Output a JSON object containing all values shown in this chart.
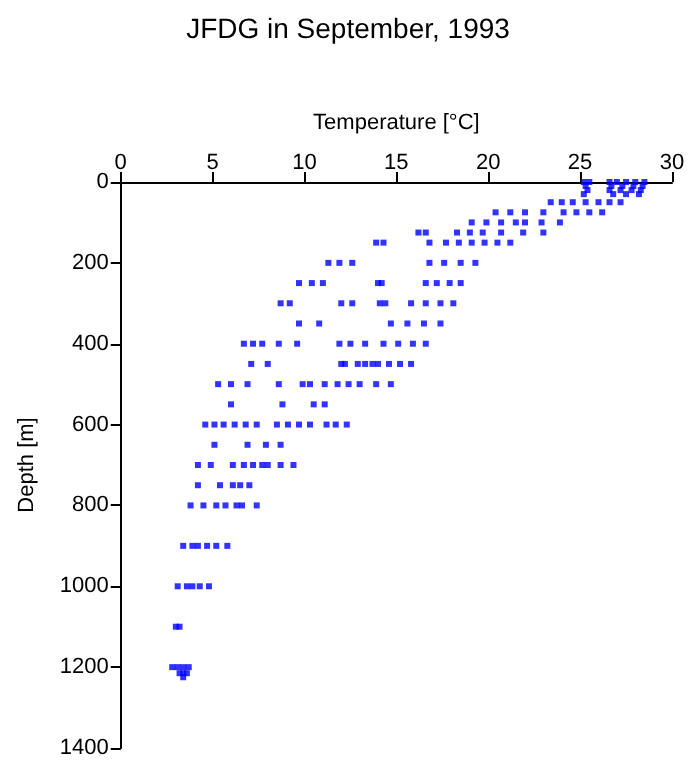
{
  "chart_data": {
    "type": "scatter",
    "title": "JFDG in September, 1993",
    "xlabel": "Temperature [°C]",
    "ylabel": "Depth [m]",
    "xlim": [
      0,
      30
    ],
    "xticks": [
      0,
      5,
      10,
      15,
      20,
      25,
      30
    ],
    "ylim": [
      1400,
      0
    ],
    "yticks": [
      0,
      200,
      400,
      600,
      800,
      1000,
      1200,
      1400
    ],
    "grid": false,
    "marker": "square",
    "series": [
      {
        "color": "#0000ff",
        "x": [
          25.2,
          25.5,
          26.6,
          27.0,
          27.5,
          28.0,
          28.5,
          25.3,
          26.7,
          27.3,
          27.9,
          28.4,
          25.4,
          26.6,
          27.2,
          27.8,
          28.3,
          25.2,
          26.8,
          27.5,
          28.2,
          23.4,
          24.0,
          24.6,
          25.3,
          26.0,
          26.6,
          27.2,
          20.4,
          21.2,
          22.0,
          23.0,
          24.1,
          24.8,
          25.5,
          26.2,
          19.1,
          19.9,
          20.7,
          21.5,
          22.0,
          22.9,
          23.9,
          16.2,
          16.6,
          18.3,
          19.0,
          19.7,
          20.7,
          21.9,
          23.0,
          13.9,
          14.3,
          16.8,
          17.7,
          18.4,
          19.1,
          19.8,
          20.5,
          21.2,
          11.3,
          11.9,
          12.6,
          16.8,
          17.6,
          18.5,
          19.3,
          9.7,
          10.4,
          11.0,
          14.0,
          14.2,
          16.6,
          17.2,
          17.9,
          18.5,
          8.7,
          9.2,
          12.0,
          12.6,
          14.1,
          14.4,
          15.8,
          16.6,
          17.4,
          18.1,
          9.7,
          10.8,
          14.7,
          15.6,
          16.5,
          17.4,
          6.7,
          7.2,
          7.7,
          8.6,
          9.6,
          11.9,
          12.5,
          13.3,
          14.3,
          15.1,
          15.9,
          16.6,
          7.1,
          8.0,
          12.0,
          12.2,
          12.9,
          13.3,
          13.7,
          14.0,
          14.6,
          15.2,
          15.8,
          5.3,
          6.0,
          6.9,
          8.6,
          9.9,
          10.3,
          11.1,
          11.8,
          12.4,
          13.0,
          13.9,
          14.7,
          6.0,
          8.8,
          10.5,
          11.1,
          4.6,
          5.1,
          5.6,
          6.2,
          6.8,
          7.4,
          8.5,
          9.1,
          9.7,
          10.3,
          11.2,
          11.7,
          12.3,
          5.1,
          6.9,
          7.9,
          8.7,
          4.2,
          4.9,
          6.1,
          6.7,
          7.2,
          7.7,
          8.0,
          8.7,
          9.4,
          4.2,
          5.4,
          6.1,
          6.5,
          7.0,
          3.8,
          4.5,
          5.2,
          5.7,
          6.3,
          6.6,
          7.4,
          3.4,
          3.9,
          4.2,
          4.7,
          5.2,
          5.8,
          3.1,
          3.6,
          3.9,
          4.3,
          4.8,
          3.0,
          3.2,
          2.8,
          3.1,
          3.4,
          3.7,
          3.2,
          3.4,
          3.6,
          3.4
        ],
        "values": [
          0,
          0,
          0,
          0,
          0,
          0,
          0,
          10,
          10,
          10,
          10,
          10,
          20,
          20,
          20,
          20,
          20,
          30,
          30,
          30,
          30,
          50,
          50,
          50,
          50,
          50,
          50,
          50,
          75,
          75,
          75,
          75,
          75,
          75,
          75,
          75,
          100,
          100,
          100,
          100,
          100,
          100,
          100,
          125,
          125,
          125,
          125,
          125,
          125,
          125,
          125,
          150,
          150,
          150,
          150,
          150,
          150,
          150,
          150,
          150,
          200,
          200,
          200,
          200,
          200,
          200,
          200,
          250,
          250,
          250,
          250,
          250,
          250,
          250,
          250,
          250,
          300,
          300,
          300,
          300,
          300,
          300,
          300,
          300,
          300,
          300,
          350,
          350,
          350,
          350,
          350,
          350,
          400,
          400,
          400,
          400,
          400,
          400,
          400,
          400,
          400,
          400,
          400,
          400,
          450,
          450,
          450,
          450,
          450,
          450,
          450,
          450,
          450,
          450,
          450,
          500,
          500,
          500,
          500,
          500,
          500,
          500,
          500,
          500,
          500,
          500,
          500,
          550,
          550,
          550,
          550,
          600,
          600,
          600,
          600,
          600,
          600,
          600,
          600,
          600,
          600,
          600,
          600,
          600,
          650,
          650,
          650,
          650,
          700,
          700,
          700,
          700,
          700,
          700,
          700,
          700,
          700,
          750,
          750,
          750,
          750,
          750,
          800,
          800,
          800,
          800,
          800,
          800,
          800,
          900,
          900,
          900,
          900,
          900,
          900,
          1000,
          1000,
          1000,
          1000,
          1000,
          1100,
          1100,
          1200,
          1200,
          1200,
          1200,
          1215,
          1215,
          1215,
          1225
        ]
      }
    ]
  }
}
